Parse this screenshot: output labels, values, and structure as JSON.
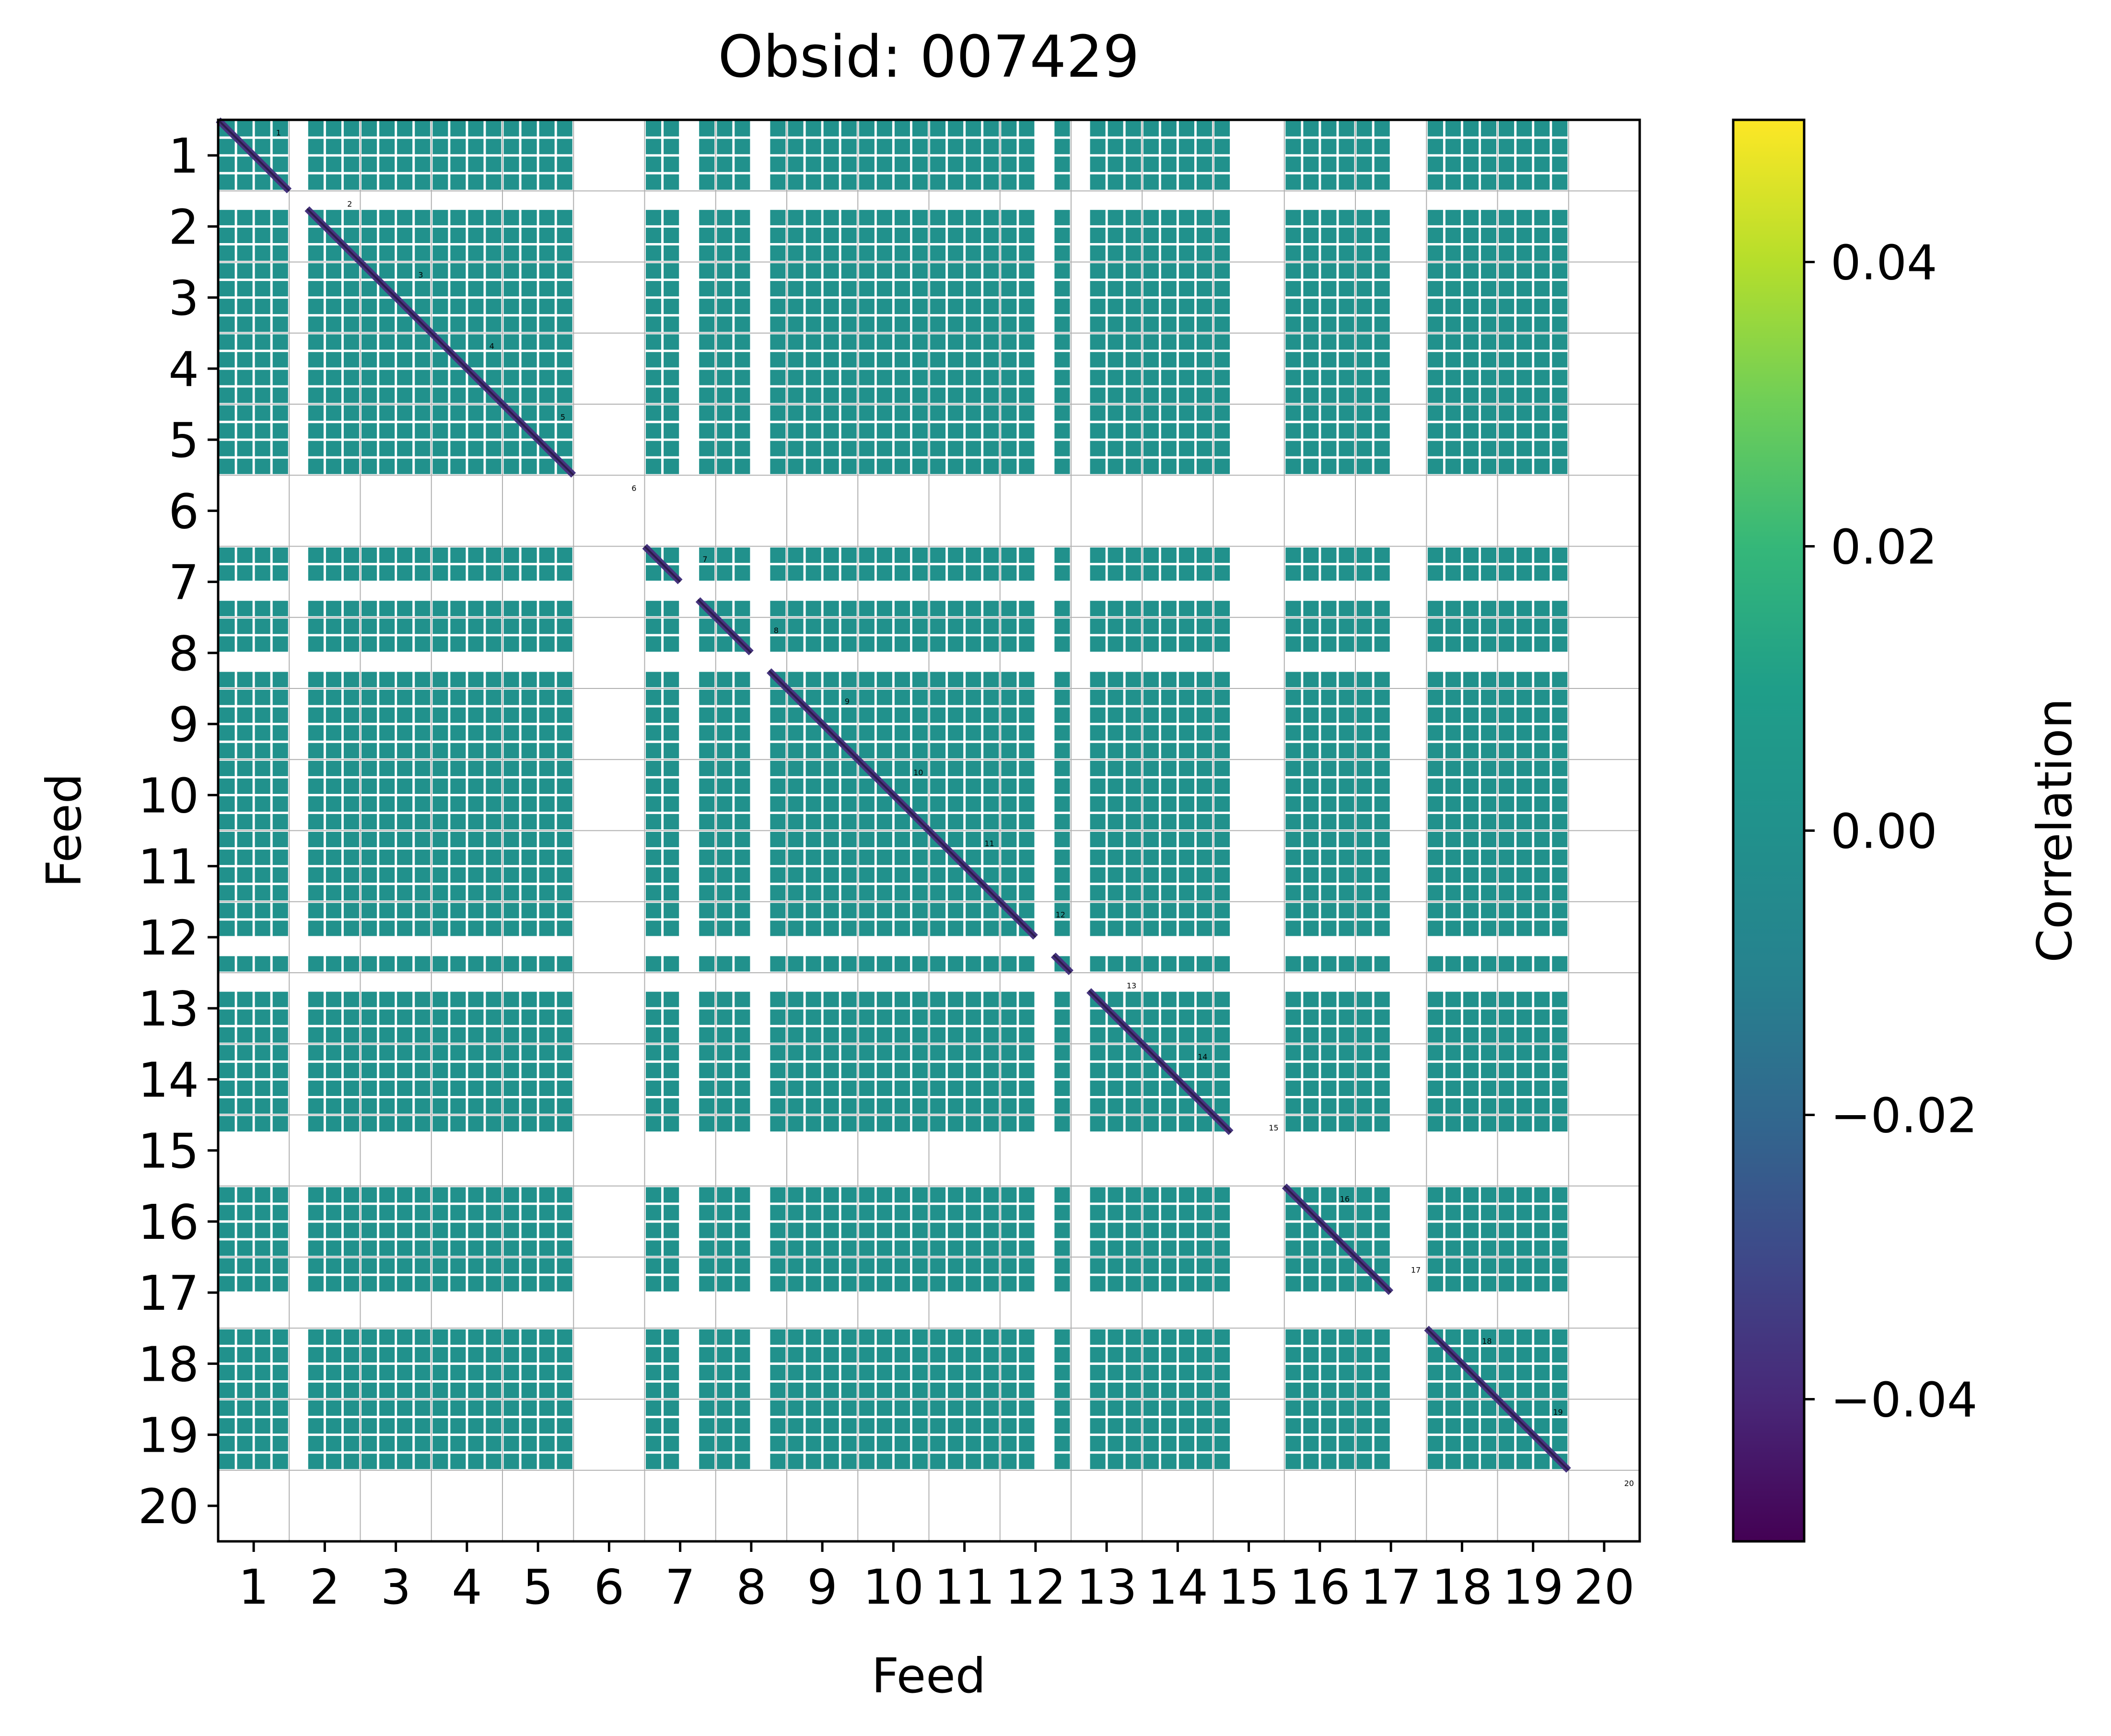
{
  "colors": {
    "fill": "#21918c",
    "diag": "#45337d",
    "diag_dark": "#2b1b4a",
    "grid": "#b0b0b0",
    "gap": "#ffffff"
  },
  "chart_data": {
    "type": "heatmap",
    "title": "Obsid: 007429",
    "xlabel": "Feed",
    "ylabel": "Feed",
    "x_tick_labels": [
      "1",
      "2",
      "3",
      "4",
      "5",
      "6",
      "7",
      "8",
      "9",
      "10",
      "11",
      "12",
      "13",
      "14",
      "15",
      "16",
      "17",
      "18",
      "19",
      "20"
    ],
    "y_tick_labels": [
      "1",
      "2",
      "3",
      "4",
      "5",
      "6",
      "7",
      "8",
      "9",
      "10",
      "11",
      "12",
      "13",
      "14",
      "15",
      "16",
      "17",
      "18",
      "19",
      "20"
    ],
    "feeds": [
      1,
      2,
      3,
      4,
      5,
      6,
      7,
      8,
      9,
      10,
      11,
      12,
      13,
      14,
      15,
      16,
      17,
      18,
      19,
      20
    ],
    "sidebands": 4,
    "value_off_diagonal": 0.0,
    "value_diagonal": -0.03,
    "masked_feeds": [
      6,
      20
    ],
    "masked_segments": {
      "2": [
        1
      ],
      "7": [
        3
      ],
      "8": [
        3
      ],
      "12": [
        3
      ],
      "13": [
        1
      ],
      "15": [
        2,
        3,
        4
      ],
      "17": [
        3,
        4
      ]
    },
    "diagonal_annotations": [
      "1",
      "2",
      "3",
      "4",
      "5",
      "6",
      "7",
      "8",
      "9",
      "10",
      "11",
      "12",
      "13",
      "14",
      "15",
      "16",
      "17",
      "18",
      "19",
      "20"
    ],
    "colorbar": {
      "label": "Correlation",
      "range": [
        -0.05,
        0.05
      ],
      "ticks": [
        -0.04,
        -0.02,
        0.0,
        0.02,
        0.04
      ],
      "tick_labels": [
        "−0.04",
        "−0.02",
        "0.00",
        "0.02",
        "0.04"
      ],
      "colormap": "viridis"
    }
  }
}
